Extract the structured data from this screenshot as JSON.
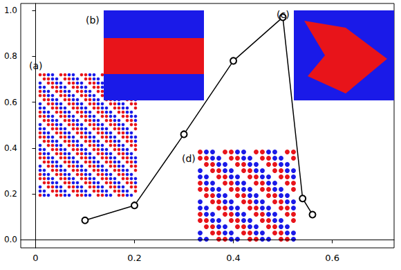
{
  "chart_data": {
    "type": "line",
    "x": [
      0.1,
      0.2,
      0.3,
      0.4,
      0.5,
      0.54,
      0.56
    ],
    "values": [
      0.085,
      0.15,
      0.46,
      0.78,
      0.97,
      0.18,
      0.11
    ],
    "color": "#000000",
    "marker": "circle",
    "xlim": [
      -0.03,
      0.725
    ],
    "xticks": [
      0,
      0.2,
      0.4,
      0.6
    ],
    "ylim": [
      -0.035,
      1.03
    ],
    "yticks": [
      {
        "value": 0,
        "label": "0.0"
      },
      {
        "value": 0.2,
        "label": "0.2"
      },
      {
        "value": 0.4,
        "label": "0.4"
      },
      {
        "value": 0.6,
        "label": "0.6"
      },
      {
        "value": 0.8,
        "label": "0.8"
      },
      {
        "value": 1,
        "label": "1.0"
      }
    ],
    "grid": false,
    "annotations": [
      "(a)",
      "(b)",
      "(c)",
      "(d)"
    ]
  }
}
